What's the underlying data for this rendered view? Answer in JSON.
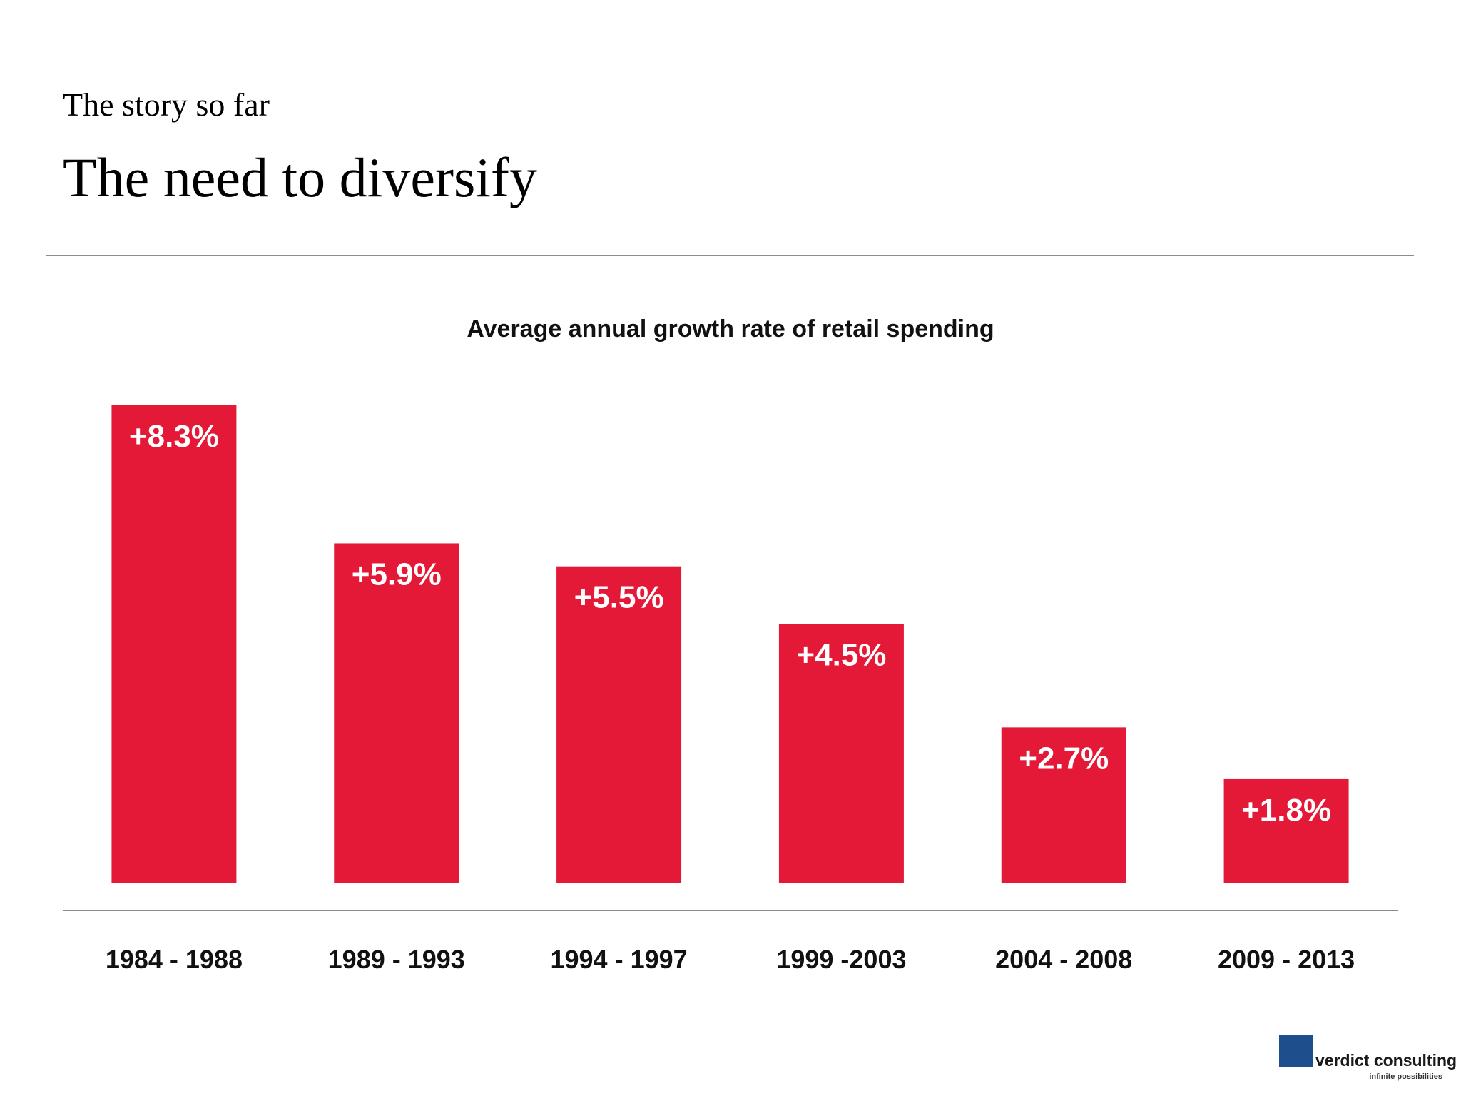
{
  "header": {
    "kicker": "The story so far",
    "title": "The need to diversify"
  },
  "chart_data": {
    "type": "bar",
    "title": "Average annual growth rate of retail spending",
    "categories": [
      "1984 - 1988",
      "1989 - 1993",
      "1994 - 1997",
      "1999 -2003",
      "2004 - 2008",
      "2009 - 2013"
    ],
    "values": [
      8.3,
      5.9,
      5.5,
      4.5,
      2.7,
      1.8
    ],
    "value_labels": [
      "+8.3%",
      "+5.9%",
      "+5.5%",
      "+4.5%",
      "+2.7%",
      "+1.8%"
    ],
    "color": "#e31937"
  },
  "logo": {
    "name": "verdict consulting",
    "tagline": "infinite possibilities"
  }
}
